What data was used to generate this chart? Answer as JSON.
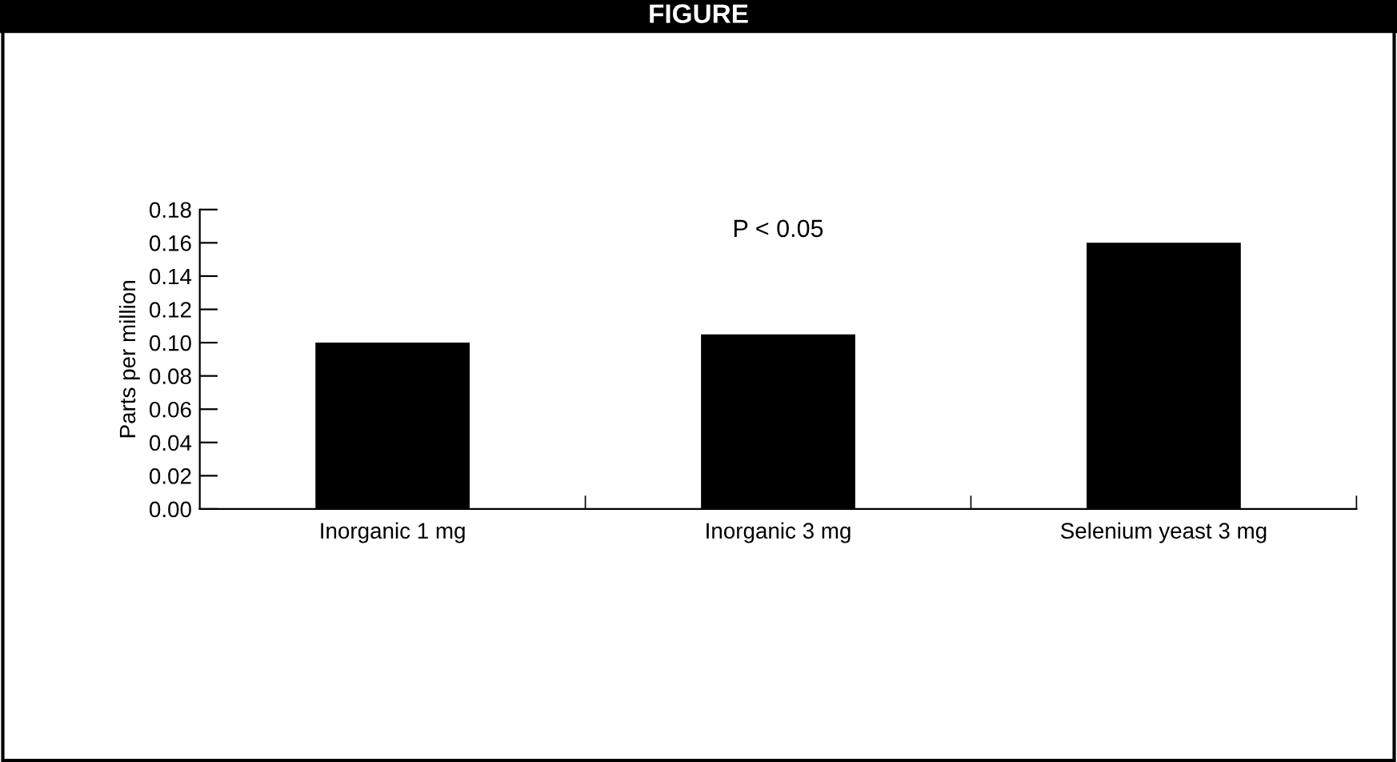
{
  "chart_data": {
    "type": "bar",
    "title": "FIGURE",
    "ylabel": "Parts per million",
    "categories": [
      "Inorganic 1 mg",
      "Inorganic 3 mg",
      "Selenium yeast 3 mg"
    ],
    "values": [
      0.1,
      0.105,
      0.16
    ],
    "color": "#000000",
    "ylim": [
      0,
      0.18
    ],
    "yticks": [
      {
        "value": 0,
        "label": "0.00"
      },
      {
        "value": 0.02,
        "label": "0.02"
      },
      {
        "value": 0.04,
        "label": "0.04"
      },
      {
        "value": 0.06,
        "label": "0.06"
      },
      {
        "value": 0.08,
        "label": "0.08"
      },
      {
        "value": 0.1,
        "label": "0.10"
      },
      {
        "value": 0.12,
        "label": "0.12"
      },
      {
        "value": 0.14,
        "label": "0.14"
      },
      {
        "value": 0.16,
        "label": "0.16"
      },
      {
        "value": 0.18,
        "label": "0.18"
      }
    ],
    "annotations": [
      "P < 0.05"
    ],
    "grid": false,
    "legend": false
  }
}
